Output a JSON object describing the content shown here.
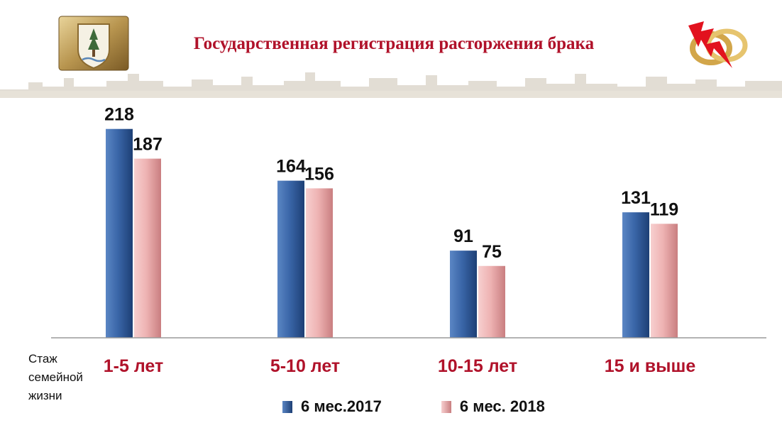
{
  "header": {
    "title": "Государственная регистрация расторжения брака"
  },
  "icons": {
    "left": "coat-of-arms-emblem",
    "right": "broken-rings-lightning"
  },
  "colors": {
    "title": "#b0122a",
    "category": "#b0122a",
    "series_2017": "#2f5597",
    "series_2018": "#f0b3b3"
  },
  "chart_data": {
    "type": "bar",
    "categories": [
      "1-5 лет",
      "5-10 лет",
      "10-15 лет",
      "15 и выше"
    ],
    "series": [
      {
        "name": "6 мес.2017",
        "values": [
          218,
          164,
          91,
          131
        ]
      },
      {
        "name": "6 мес. 2018",
        "values": [
          187,
          156,
          75,
          119
        ]
      }
    ],
    "xlabel": "Стаж\nсемейной\nжизни",
    "ylabel": "",
    "ylim": [
      0,
      240
    ],
    "data_labels": true,
    "grid": false,
    "legend": "bottom"
  }
}
